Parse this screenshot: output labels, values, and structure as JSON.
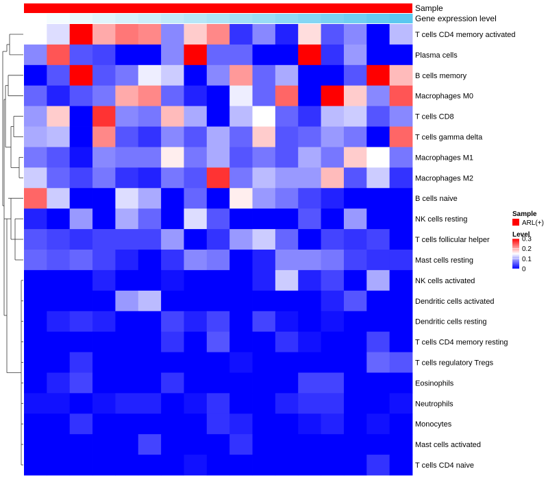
{
  "chart_data": {
    "type": "heatmap",
    "annotations": [
      {
        "name": "Sample",
        "color": "#ff0000"
      },
      {
        "name": "Gene expression level",
        "gradient": [
          "#ffffff",
          "#5bc8f0"
        ]
      }
    ],
    "rows": [
      "T cells CD4 memory activated",
      "Plasma cells",
      "B cells memory",
      "Macrophages M0",
      "T cells CD8",
      "T cells gamma delta",
      "Macrophages M1",
      "Macrophages M2",
      "B cells naive",
      "NK cells resting",
      "T cells follicular helper",
      "Mast cells resting",
      "NK cells activated",
      "Dendritic cells activated",
      "Dendritic cells resting",
      "T cells CD4 memory resting",
      "T cells regulatory  Tregs",
      "Eosinophils",
      "Neutrophils",
      "Monocytes",
      "Mast cells activated",
      "T cells CD4 naive"
    ],
    "values": [
      [
        0.15,
        0.13,
        0.3,
        0.2,
        0.23,
        0.22,
        0.08,
        0.18,
        0.22,
        0.03,
        0.08,
        0.02,
        0.17,
        0.05,
        0.08,
        0.0,
        0.11
      ],
      [
        0.08,
        0.25,
        0.05,
        0.04,
        0.0,
        0.0,
        0.08,
        0.3,
        0.06,
        0.06,
        0.0,
        0.0,
        0.3,
        0.03,
        0.09,
        0.0,
        0.0
      ],
      [
        0.0,
        0.05,
        0.3,
        0.05,
        0.07,
        0.14,
        0.12,
        0.0,
        0.08,
        0.21,
        0.06,
        0.1,
        0.0,
        0.0,
        0.05,
        0.3,
        0.19
      ],
      [
        0.06,
        0.02,
        0.05,
        0.07,
        0.2,
        0.22,
        0.06,
        0.02,
        0.0,
        0.14,
        0.06,
        0.24,
        0.0,
        0.3,
        0.18,
        0.08,
        0.25
      ],
      [
        0.09,
        0.18,
        0.0,
        0.27,
        0.08,
        0.07,
        0.19,
        0.1,
        0.0,
        0.11,
        0.15,
        0.06,
        0.03,
        0.11,
        0.12,
        0.05,
        0.08
      ],
      [
        0.1,
        0.11,
        0.0,
        0.22,
        0.05,
        0.03,
        0.08,
        0.05,
        0.1,
        0.06,
        0.18,
        0.05,
        0.06,
        0.09,
        0.07,
        0.0,
        0.24
      ],
      [
        0.07,
        0.05,
        0.01,
        0.08,
        0.07,
        0.07,
        0.16,
        0.07,
        0.1,
        0.05,
        0.07,
        0.05,
        0.1,
        0.07,
        0.18,
        0.15,
        0.07
      ],
      [
        0.12,
        0.06,
        0.04,
        0.07,
        0.03,
        0.02,
        0.07,
        0.05,
        0.27,
        0.07,
        0.11,
        0.09,
        0.09,
        0.19,
        0.05,
        0.12,
        0.03
      ],
      [
        0.24,
        0.12,
        0.0,
        0.0,
        0.13,
        0.1,
        0.0,
        0.06,
        0.0,
        0.16,
        0.09,
        0.07,
        0.04,
        0.02,
        0.0,
        0.0,
        0.0
      ],
      [
        0.02,
        0.0,
        0.09,
        0.0,
        0.1,
        0.06,
        0.0,
        0.13,
        0.05,
        0.0,
        0.0,
        0.0,
        0.05,
        0.0,
        0.09,
        0.0,
        0.0
      ],
      [
        0.05,
        0.04,
        0.03,
        0.04,
        0.04,
        0.04,
        0.09,
        0.0,
        0.03,
        0.09,
        0.12,
        0.06,
        0.0,
        0.04,
        0.03,
        0.04,
        0.0
      ],
      [
        0.06,
        0.05,
        0.06,
        0.04,
        0.02,
        0.0,
        0.03,
        0.08,
        0.07,
        0.0,
        0.02,
        0.08,
        0.08,
        0.07,
        0.04,
        0.03,
        0.03
      ],
      [
        0.0,
        0.0,
        0.0,
        0.02,
        0.0,
        0.0,
        0.01,
        0.0,
        0.0,
        0.0,
        0.02,
        0.12,
        0.02,
        0.04,
        0.0,
        0.1,
        0.0
      ],
      [
        0.0,
        0.0,
        0.0,
        0.0,
        0.09,
        0.11,
        0.0,
        0.0,
        0.0,
        0.0,
        0.0,
        0.0,
        0.0,
        0.02,
        0.05,
        0.0,
        0.0
      ],
      [
        0.0,
        0.02,
        0.03,
        0.02,
        0.0,
        0.0,
        0.04,
        0.02,
        0.04,
        0.0,
        0.04,
        0.01,
        0.0,
        0.01,
        0.0,
        0.0,
        0.0
      ],
      [
        0.0,
        0.0,
        0.0,
        0.0,
        0.0,
        0.0,
        0.03,
        0.0,
        0.05,
        0.0,
        0.0,
        0.03,
        0.01,
        0.0,
        0.0,
        0.04,
        0.0
      ],
      [
        0.0,
        0.0,
        0.03,
        0.0,
        0.0,
        0.0,
        0.0,
        0.0,
        0.0,
        0.01,
        0.0,
        0.0,
        0.0,
        0.0,
        0.0,
        0.06,
        0.05
      ],
      [
        0.0,
        0.02,
        0.04,
        0.0,
        0.0,
        0.0,
        0.03,
        0.0,
        0.0,
        0.0,
        0.0,
        0.0,
        0.04,
        0.04,
        0.0,
        0.0,
        0.0
      ],
      [
        0.01,
        0.01,
        0.0,
        0.01,
        0.02,
        0.02,
        0.0,
        0.01,
        0.03,
        0.0,
        0.0,
        0.02,
        0.03,
        0.03,
        0.0,
        0.0,
        0.01
      ],
      [
        0.0,
        0.0,
        0.03,
        0.0,
        0.0,
        0.0,
        0.0,
        0.0,
        0.03,
        0.02,
        0.0,
        0.0,
        0.01,
        0.02,
        0.0,
        0.01,
        0.0
      ],
      [
        0.0,
        0.0,
        0.0,
        0.0,
        0.0,
        0.04,
        0.0,
        0.0,
        0.0,
        0.03,
        0.0,
        0.0,
        0.0,
        0.0,
        0.0,
        0.0,
        0.0
      ],
      [
        0.0,
        0.0,
        0.0,
        0.0,
        0.0,
        0.0,
        0.0,
        0.01,
        0.0,
        0.0,
        0.0,
        0.0,
        0.0,
        0.0,
        0.0,
        0.03,
        0.0
      ]
    ],
    "color_scale": {
      "min": 0,
      "mid": 0.15,
      "max": 0.3,
      "low": "#0000ff",
      "midColor": "#ffffff",
      "high": "#ff0000"
    },
    "legend": {
      "sample_title": "Sample",
      "sample_entry": "ARL(+)",
      "level_title": "Level",
      "ticks": [
        "0.3",
        "0.2",
        "0.1",
        "0"
      ],
      "position": "right"
    }
  }
}
